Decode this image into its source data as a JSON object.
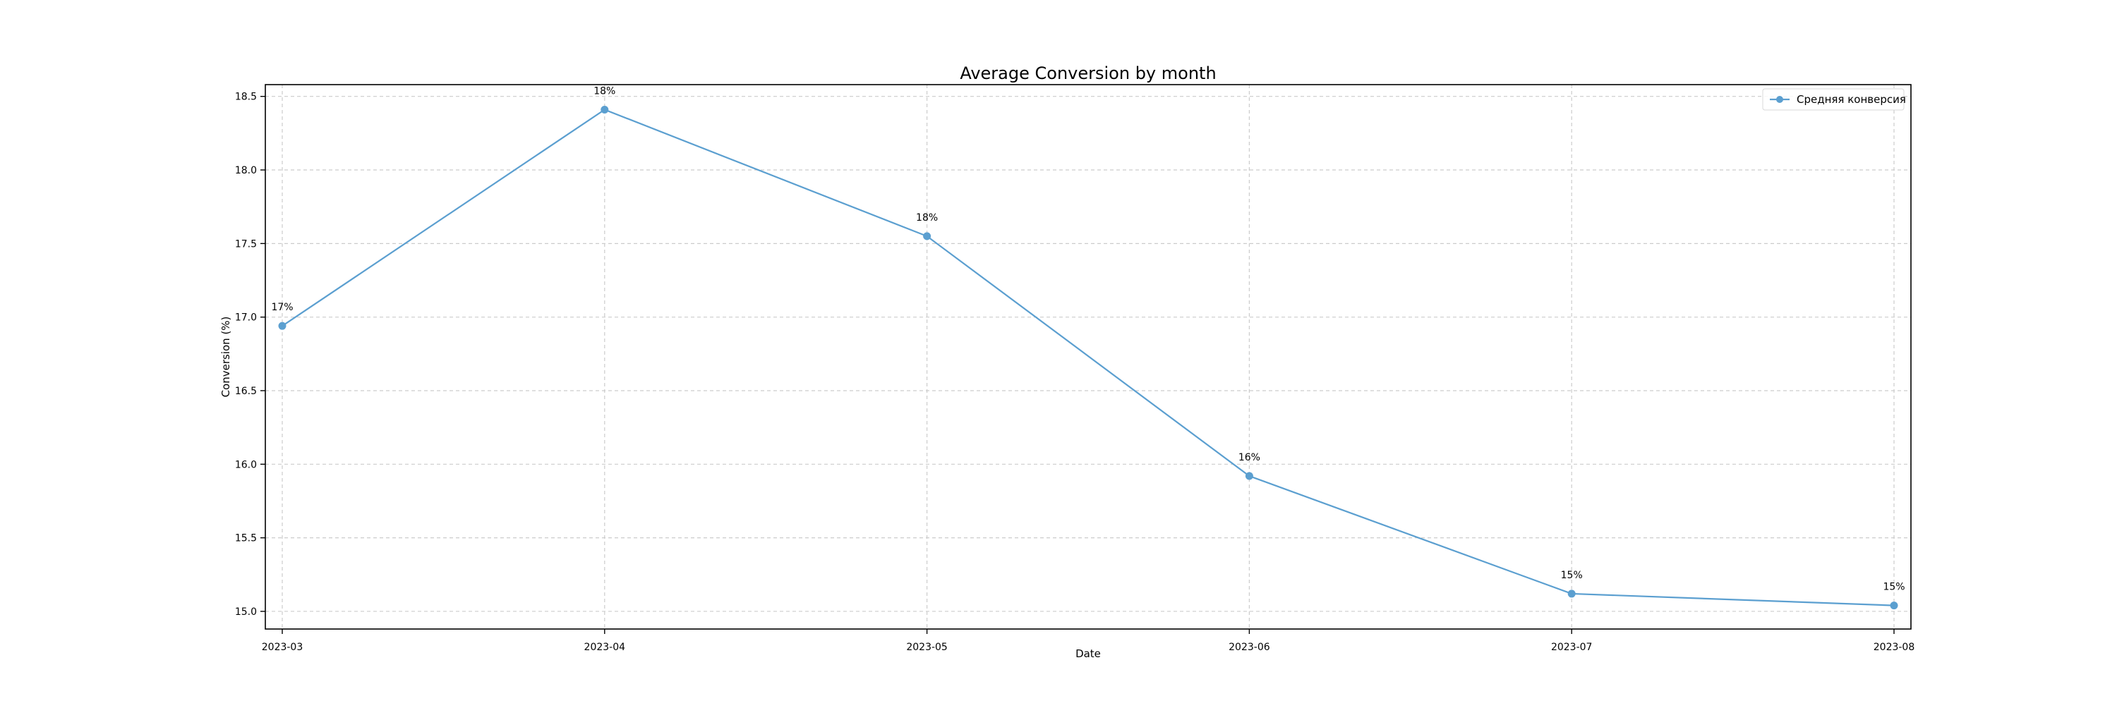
{
  "chart_data": {
    "type": "line",
    "title": "Average Conversion by month",
    "xlabel": "Date",
    "ylabel": "Conversion (%)",
    "categories": [
      "2023-03",
      "2023-04",
      "2023-05",
      "2023-06",
      "2023-07",
      "2023-08"
    ],
    "ylim": [
      14.88,
      18.58
    ],
    "yticks": [
      15.0,
      15.5,
      16.0,
      16.5,
      17.0,
      17.5,
      18.0,
      18.5
    ],
    "ytick_labels": [
      "15.0",
      "15.5",
      "16.0",
      "16.5",
      "17.0",
      "17.5",
      "18.0",
      "18.5"
    ],
    "grid": true,
    "legend_position": "top-right",
    "series": [
      {
        "name": "Средняя конверсия",
        "color": "#5b9fd0",
        "values": [
          16.94,
          18.41,
          17.55,
          15.92,
          15.12,
          15.04
        ],
        "data_labels": [
          "17%",
          "18%",
          "18%",
          "16%",
          "15%",
          "15%"
        ]
      }
    ]
  }
}
